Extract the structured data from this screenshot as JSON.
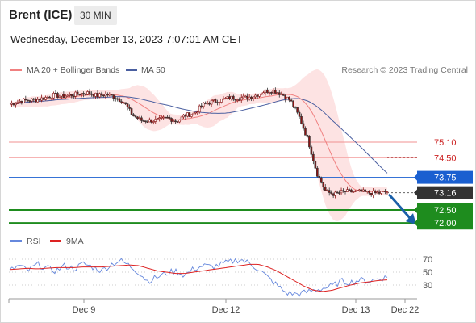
{
  "header": {
    "title": "Brent (ICE)",
    "timeframe": "30 MIN",
    "datetime": "Wednesday, December 13, 2023 7:07:01 AM CET"
  },
  "legend": {
    "ma20": "MA 20 + Bollinger Bands",
    "ma50": "MA 50",
    "credit": "Research © 2023 Trading Central"
  },
  "rsi_legend": {
    "rsi": "RSI",
    "ma9": "9MA"
  },
  "colors": {
    "ma20": "#f08080",
    "ma50": "#4a5fa0",
    "bollinger_fill": "#fde3e3",
    "resistance": "#cc2222",
    "pivot": "#1a5fd0",
    "support": "#1e8c1e",
    "current": "#333333",
    "arrow": "#1a5fa8",
    "rsi": "#6688dd",
    "rsi_ma": "#dd2222"
  },
  "chart_data": {
    "type": "candlestick",
    "x_tick_labels": [
      "Dec 9",
      "Dec 12",
      "Dec 13",
      "Dec 22"
    ],
    "price_levels": [
      {
        "value": 75.1,
        "label": "75.10",
        "kind": "resistance"
      },
      {
        "value": 74.5,
        "label": "74.50",
        "kind": "resistance-dashed"
      },
      {
        "value": 73.75,
        "label": "73.75",
        "kind": "pivot"
      },
      {
        "value": 73.16,
        "label": "73.16",
        "kind": "current"
      },
      {
        "value": 72.5,
        "label": "72.50",
        "kind": "support"
      },
      {
        "value": 72.0,
        "label": "72.00",
        "kind": "support"
      }
    ],
    "price_path": [
      76.55,
      76.66,
      76.71,
      76.72,
      76.8,
      76.9,
      76.86,
      76.9,
      76.96,
      76.99,
      76.88,
      76.93,
      76.83,
      76.63,
      76.13,
      75.93,
      75.92,
      75.95,
      76.03,
      75.9,
      76.13,
      76.2,
      76.53,
      76.65,
      76.7,
      76.8,
      76.8,
      76.8,
      76.9,
      77.05,
      77.08,
      76.95,
      76.68,
      76.05,
      75.15,
      73.9,
      73.2,
      73.1,
      73.2,
      73.2,
      73.2,
      73.15,
      73.15,
      73.2
    ],
    "forecast_arrow": {
      "from": 73.1,
      "to": 72.0
    },
    "rsi": {
      "ticks": [
        70,
        50,
        30
      ],
      "rsi_path": [
        52,
        60,
        52,
        62,
        56,
        52,
        60,
        55,
        63,
        58,
        52,
        62,
        68,
        60,
        50,
        36,
        42,
        48,
        52,
        45,
        55,
        60,
        58,
        62,
        66,
        70,
        64,
        55,
        42,
        30,
        18,
        16,
        18,
        22,
        25,
        28,
        36,
        34,
        38,
        36,
        40,
        42
      ],
      "ma9_path": [
        54,
        55,
        56,
        55,
        56,
        57,
        57,
        57,
        58,
        58,
        58,
        59,
        60,
        61,
        60,
        56,
        52,
        50,
        48,
        48,
        50,
        52,
        54,
        56,
        58,
        60,
        62,
        62,
        58,
        52,
        44,
        36,
        28,
        22,
        20,
        22,
        26,
        30,
        33,
        35,
        37,
        38
      ]
    }
  }
}
